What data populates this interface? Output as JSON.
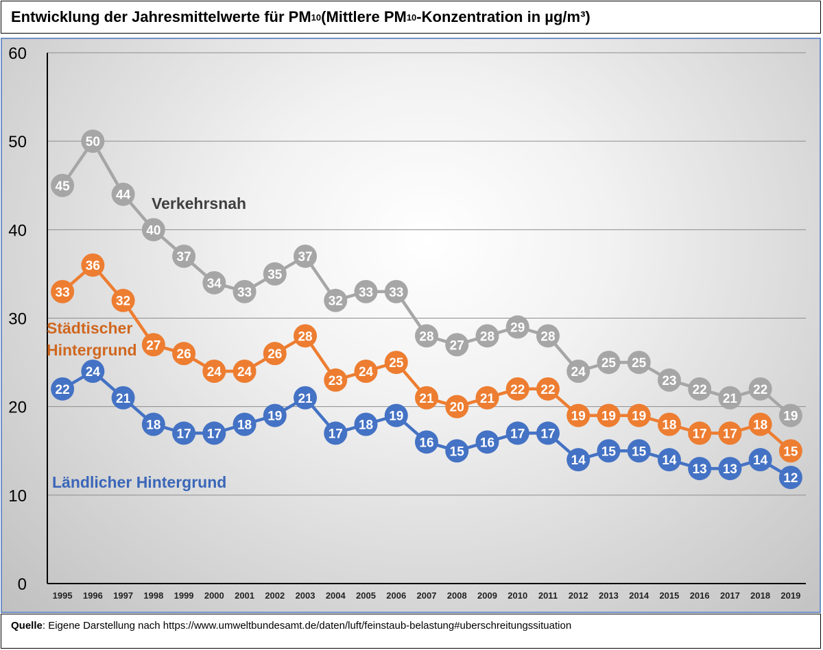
{
  "header": {
    "title_part1": "Entwicklung der Jahresmittelwerte für PM",
    "title_sub1": "10",
    "title_part2": " (Mittlere PM",
    "title_sub2": "10",
    "title_part3": "-Konzentration in µg/m³)"
  },
  "footer": {
    "source_label": "Quelle",
    "source_text": ": Eigene Darstellung nach https://www.umweltbundesamt.de/daten/luft/feinstaub-belastung#uberschreitungssituation"
  },
  "colors": {
    "traffic": "#a6a6a6",
    "urban": "#ed7d31",
    "rural": "#4472c4",
    "urban_label": "#d0671f",
    "rural_label": "#3a66b8",
    "traffic_label": "#404040"
  },
  "chart_data": {
    "type": "line",
    "title": "Entwicklung der Jahresmittelwerte für PM10 (Mittlere PM10-Konzentration in µg/m³)",
    "xlabel": "",
    "ylabel": "",
    "ylim": [
      0,
      60
    ],
    "yticks": [
      0,
      10,
      20,
      30,
      40,
      50,
      60
    ],
    "grid": true,
    "categories": [
      "1995",
      "1996",
      "1997",
      "1998",
      "1999",
      "2000",
      "2001",
      "2002",
      "2003",
      "2004",
      "2005",
      "2006",
      "2007",
      "2008",
      "2009",
      "2010",
      "2011",
      "2012",
      "2013",
      "2014",
      "2015",
      "2016",
      "2017",
      "2018",
      "2019"
    ],
    "series": [
      {
        "name": "Verkehrsnah",
        "key": "traffic",
        "values": [
          45,
          50,
          44,
          40,
          37,
          34,
          33,
          35,
          37,
          32,
          33,
          33,
          28,
          27,
          28,
          29,
          28,
          24,
          25,
          25,
          23,
          22,
          21,
          22,
          19
        ]
      },
      {
        "name": "Städtischer Hintergrund",
        "label_lines": [
          "Städtischer",
          "Hintergrund"
        ],
        "key": "urban",
        "values": [
          33,
          36,
          32,
          27,
          26,
          24,
          24,
          26,
          28,
          23,
          24,
          25,
          21,
          20,
          21,
          22,
          22,
          19,
          19,
          19,
          18,
          17,
          17,
          18,
          15
        ]
      },
      {
        "name": "Ländlicher Hintergrund",
        "key": "rural",
        "values": [
          22,
          24,
          21,
          18,
          17,
          17,
          18,
          19,
          21,
          17,
          18,
          19,
          16,
          15,
          16,
          17,
          17,
          14,
          15,
          15,
          14,
          13,
          13,
          14,
          12
        ]
      }
    ]
  }
}
